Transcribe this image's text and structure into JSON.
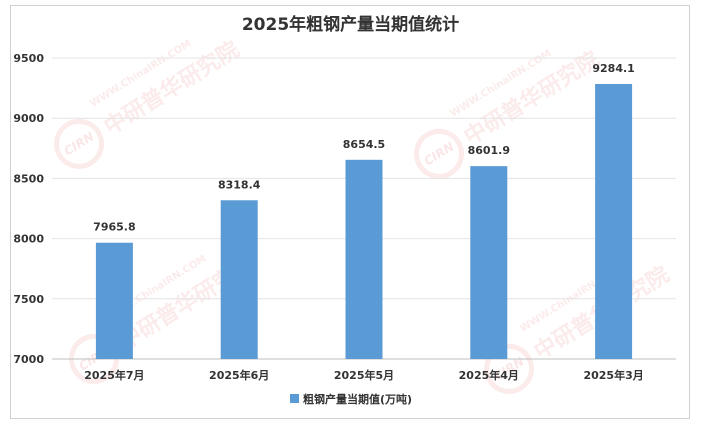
{
  "watermark": {
    "url": "WWW.ChinaIRN.COM",
    "logo": "CIRN",
    "name": "中研普华研究院"
  },
  "chart_data": {
    "type": "bar",
    "title": "2025年粗钢产量当期值统计",
    "categories": [
      "2025年7月",
      "2025年6月",
      "2025年5月",
      "2025年4月",
      "2025年3月"
    ],
    "series": [
      {
        "name": "粗钢产量当期值(万吨)",
        "values": [
          7965.8,
          8318.4,
          8654.5,
          8601.9,
          9284.1
        ],
        "color": "#5b9bd5"
      }
    ],
    "ylim": [
      7000,
      9500
    ],
    "yticks": [
      7000,
      7500,
      8000,
      8500,
      9000,
      9500
    ],
    "grid": true,
    "data_labels": true,
    "legend": "bottom"
  }
}
